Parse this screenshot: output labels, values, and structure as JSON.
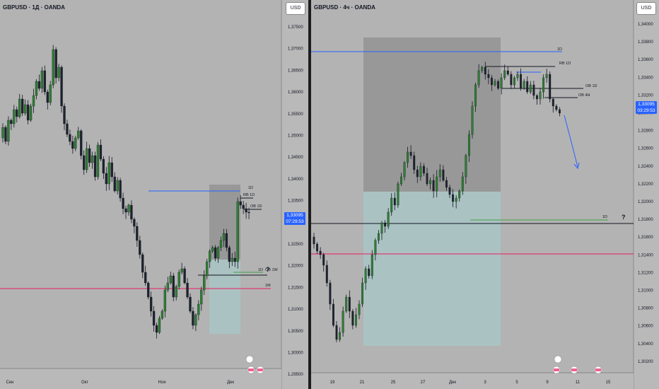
{
  "left_pane": {
    "title": "GBPUSD · 1Д · OANDA",
    "currency": "USD",
    "price_tag": {
      "price": "1,33095",
      "countdown": "07:29:53"
    },
    "y_ticks": [
      "1,37500",
      "1,37000",
      "1,36500",
      "1,36000",
      "1,35500",
      "1,35000",
      "1,34500",
      "1,34000",
      "1,33500",
      "1,33000",
      "1,32500",
      "1,32000",
      "1,31500",
      "1,31000",
      "1,30500",
      "1,30000",
      "1,29500"
    ],
    "x_ticks": [
      "Сен",
      "Окт",
      "Ноя",
      "Дек"
    ],
    "annotations": [
      "1D",
      "RB 1D",
      "OB 1D",
      "1D",
      "OB 1W",
      "?",
      "1M"
    ]
  },
  "right_pane": {
    "title": "GBPUSD · 4ч · OANDA",
    "currency": "USD",
    "price_tag": {
      "price": "1,33095",
      "countdown": "03:29:53"
    },
    "y_ticks": [
      "1,34000",
      "1,33800",
      "1,33600",
      "1,33400",
      "1,33200",
      "1,33000",
      "1,32800",
      "1,32600",
      "1,32400",
      "1,32200",
      "1,32000",
      "1,31800",
      "1,31600",
      "1,31400",
      "1,31200",
      "1,31000",
      "1,30800",
      "1,30600",
      "1,30400",
      "1,30200"
    ],
    "x_ticks": [
      "19",
      "21",
      "25",
      "27",
      "Дек",
      "3",
      "5",
      "9",
      "11",
      "15"
    ],
    "annotations": [
      "1D",
      "RB 1D",
      "OB 1D",
      "OB 4H",
      "1D",
      "?"
    ]
  },
  "chart_data": [
    {
      "type": "candlestick",
      "symbol": "GBPUSD",
      "timeframe": "1Д",
      "source": "OANDA",
      "ylim": [
        1.2925,
        1.378
      ],
      "x_labels": [
        "Сен",
        "Окт",
        "Ноя",
        "Дек"
      ],
      "last_price": 1.33095
    },
    {
      "type": "candlestick",
      "symbol": "GBPUSD",
      "timeframe": "4ч",
      "source": "OANDA",
      "ylim": [
        1.301,
        1.341
      ],
      "x_labels": [
        "19",
        "21",
        "25",
        "27",
        "Дек",
        "3",
        "5",
        "9",
        "11",
        "15"
      ],
      "last_price": 1.33095
    }
  ]
}
